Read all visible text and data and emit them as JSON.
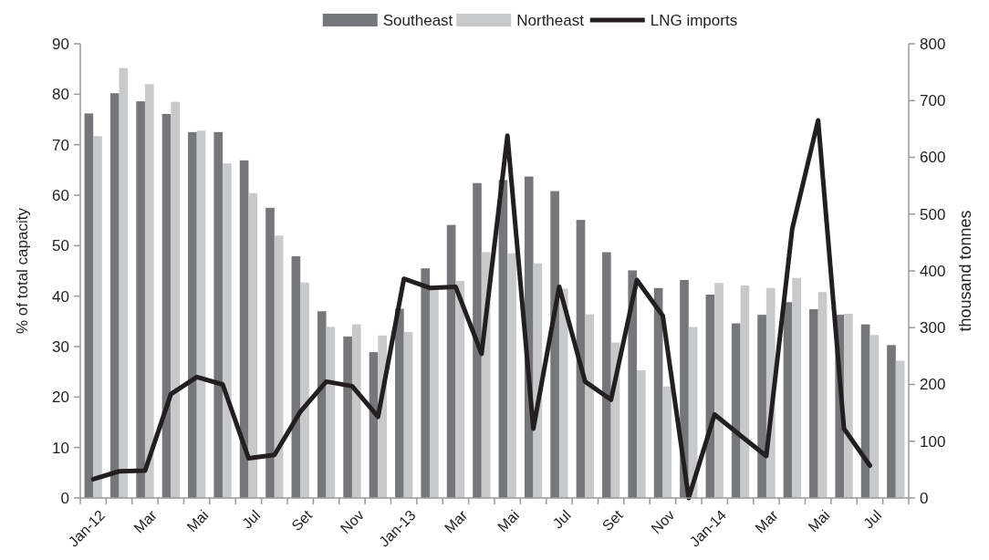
{
  "chart_data": {
    "type": "bar",
    "ylabel": "% of total capacity",
    "y2label": "thousand tonnes",
    "categories": [
      "Jan-12",
      null,
      "Mar",
      null,
      "Mai",
      null,
      "Jul",
      null,
      "Set",
      null,
      "Nov",
      null,
      "Jan-13",
      null,
      "Mar",
      null,
      "Mai",
      null,
      "Jul",
      null,
      "Set",
      null,
      "Nov",
      null,
      "Jan-14",
      null,
      "Mar",
      null,
      "Mai",
      null,
      "Jul",
      null
    ],
    "series": [
      {
        "name": "Southeast",
        "color": "#76777b",
        "values": [
          76.2,
          80.2,
          78.6,
          76.1,
          72.5,
          72.5,
          66.9,
          57.5,
          47.9,
          37,
          32,
          28.9,
          37.5,
          45.5,
          54.1,
          62.4,
          63,
          63.7,
          60.8,
          55.1,
          48.7,
          45.1,
          41.6,
          43.2,
          40.3,
          34.6,
          36.3,
          38.8,
          37.4,
          36.3,
          34.4,
          30.3
        ]
      },
      {
        "name": "Northeast",
        "color": "#c8c9cb",
        "values": [
          71.7,
          85.2,
          82,
          78.5,
          72.8,
          66.3,
          60.4,
          52,
          42.7,
          33.9,
          34.4,
          32.2,
          32.9,
          41.2,
          43,
          48.7,
          48.5,
          46.5,
          41.5,
          36.4,
          30.8,
          25.3,
          22.1,
          33.9,
          42.6,
          42.1,
          41.6,
          43.6,
          40.8,
          36.5,
          32.3,
          27.2
        ]
      },
      {
        "name": "LNG imports",
        "type": "line",
        "axis": "y2",
        "color": "#231f20",
        "values": [
          33,
          47,
          48,
          183,
          213,
          200,
          70,
          76,
          152,
          205,
          197,
          143,
          386,
          370,
          372,
          254,
          638,
          122,
          372,
          205,
          173,
          384,
          321,
          0,
          147,
          110,
          74,
          474,
          665,
          122,
          57,
          null
        ]
      }
    ],
    "ylim": [
      0,
      90
    ],
    "yticks": [
      0,
      10,
      20,
      30,
      40,
      50,
      60,
      70,
      80,
      90
    ],
    "y2lim": [
      0,
      800
    ],
    "y2ticks": [
      0,
      100,
      200,
      300,
      400,
      500,
      600,
      700,
      800
    ],
    "legend": "top",
    "grid": false,
    "marker": "none",
    "line_style": "solid"
  }
}
